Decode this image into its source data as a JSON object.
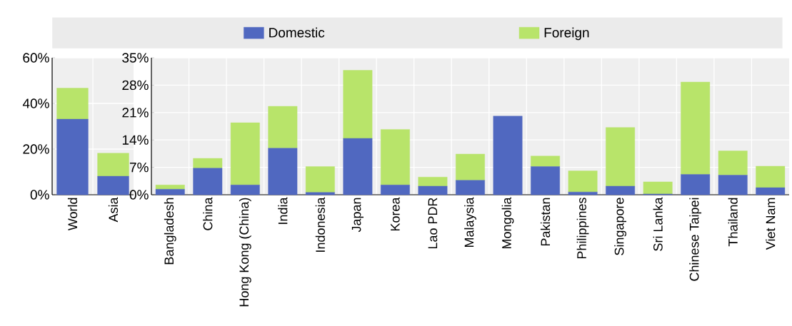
{
  "chart_data": [
    {
      "type": "bar",
      "stacked": true,
      "categories": [
        "World",
        "Asia"
      ],
      "series": [
        {
          "name": "Domestic",
          "color": "#5068c0",
          "values": [
            33.1,
            8.1
          ]
        },
        {
          "name": "Foreign",
          "color": "#b8e46a",
          "values": [
            13.6,
            10.1
          ]
        }
      ],
      "ylim": [
        0,
        60
      ],
      "yticks": [
        {
          "value": 0,
          "label": "0%"
        },
        {
          "value": 20,
          "label": "20%"
        },
        {
          "value": 40,
          "label": "40%"
        },
        {
          "value": 60,
          "label": "60%"
        }
      ],
      "grid": true,
      "legend": "top"
    },
    {
      "type": "bar",
      "stacked": true,
      "categories": [
        "Bangladesh",
        "China",
        "Hong Kong (China)",
        "India",
        "Indonesia",
        "Japan",
        "Korea",
        "Lao PDR",
        "Malaysia",
        "Mongolia",
        "Pakistan",
        "Philippines",
        "Singapore",
        "Sri Lanka",
        "Chinese Taipei",
        "Thailand",
        "Viet Nam"
      ],
      "series": [
        {
          "color": "#5068c0",
          "values": [
            1.4,
            6.8,
            2.5,
            11.9,
            0.6,
            14.4,
            2.5,
            2.2,
            3.7,
            20.1,
            7.2,
            0.7,
            2.2,
            0.2,
            5.2,
            5.0,
            1.8
          ]
        },
        {
          "color": "#b8e46a",
          "values": [
            1.1,
            2.5,
            15.9,
            10.7,
            6.6,
            17.4,
            14.2,
            2.3,
            6.7,
            0,
            2.7,
            5.4,
            15.0,
            3.1,
            23.6,
            6.2,
            5.5
          ]
        }
      ],
      "ylim": [
        0,
        35
      ],
      "yticks": [
        {
          "value": 0,
          "label": "0%"
        },
        {
          "value": 7,
          "label": "7%"
        },
        {
          "value": 14,
          "label": "14%"
        },
        {
          "value": 21,
          "label": "21%"
        },
        {
          "value": 28,
          "label": "28%"
        },
        {
          "value": 35,
          "label": "35%"
        }
      ],
      "grid": true
    }
  ]
}
